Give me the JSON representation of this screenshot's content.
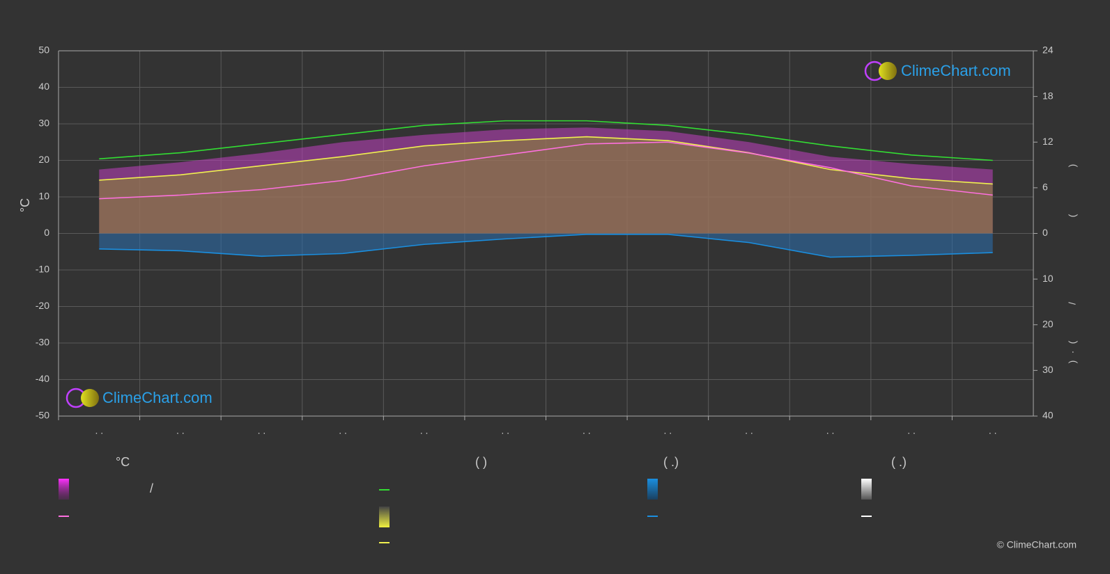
{
  "chart_data": {
    "type": "line",
    "y_label": "°C",
    "categories": [
      ". .",
      ". .",
      ". .",
      ". .",
      ". .",
      ". .",
      ". .",
      ". .",
      ". .",
      ". .",
      ". .",
      ". ."
    ],
    "ylim": [
      -50,
      50
    ],
    "yticks": [
      -50,
      -40,
      -30,
      -20,
      -10,
      0,
      10,
      20,
      30,
      40,
      50
    ],
    "y2lim": [
      0,
      24
    ],
    "y2ticks": [
      0,
      6,
      12,
      18,
      24
    ],
    "y3lim": [
      0,
      40
    ],
    "y3ticks": [
      10,
      20,
      30,
      40
    ],
    "grid": true,
    "series": [
      {
        "color": "#c040c0",
        "fill": true,
        "axis": "y",
        "values": [
          17.5,
          19.5,
          22,
          25,
          27,
          28.5,
          29,
          28,
          25,
          21,
          19,
          17.5
        ]
      },
      {
        "color": "#8a8a30",
        "fill": true,
        "axis": "y2",
        "values": [
          7.0,
          7.7,
          8.9,
          10.1,
          11.5,
          12.2,
          12.7,
          12.2,
          10.6,
          8.4,
          7.2,
          6.5
        ]
      },
      {
        "color": "#2a6fb0",
        "fill": true,
        "axis": "y3",
        "values": [
          3.4,
          3.8,
          5.0,
          4.4,
          2.4,
          1.2,
          0.2,
          0.2,
          2.0,
          5.2,
          4.8,
          4.2
        ]
      },
      {
        "color": "#33dd33",
        "axis": "y2",
        "values": [
          9.8,
          10.6,
          11.8,
          13.0,
          14.2,
          14.8,
          14.8,
          14.2,
          13.0,
          11.5,
          10.3,
          9.6
        ]
      },
      {
        "color": "#f0f050",
        "axis": "y2",
        "values": [
          7.0,
          7.7,
          8.9,
          10.1,
          11.5,
          12.2,
          12.7,
          12.2,
          10.6,
          8.4,
          7.2,
          6.5
        ]
      },
      {
        "color": "#ff70e0",
        "axis": "y",
        "values": [
          9.5,
          10.5,
          12,
          14.5,
          18.5,
          21.5,
          24.5,
          25,
          22,
          18,
          13,
          10.5
        ]
      },
      {
        "color": "#1a8fe0",
        "axis": "y3",
        "values": [
          3.4,
          3.8,
          5.0,
          4.4,
          2.4,
          1.2,
          0.2,
          0.2,
          2.0,
          5.2,
          4.8,
          4.2
        ]
      }
    ],
    "right_axis_fragments": [
      ")",
      "(",
      "/",
      "(",
      "·",
      ")"
    ],
    "legend_heads": [
      "°C",
      "(          )",
      "(   .)",
      "(   .)"
    ],
    "legend_text": "/"
  },
  "logo": "ClimeChart.com",
  "logo_bottom": "ClimeChart.com",
  "copyright": "© ClimeChart.com"
}
